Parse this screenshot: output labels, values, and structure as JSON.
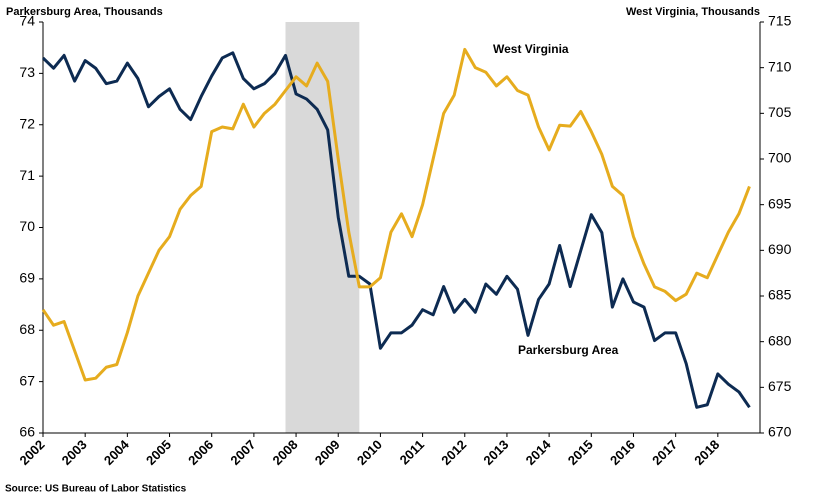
{
  "chart_data": {
    "type": "line",
    "y_label": "Parkersburg Area, Thousands",
    "y2_label": "West Virginia, Thousands",
    "source": "Source: US Bureau of Labor Statistics",
    "annotations": [
      "West Virginia",
      "Parkersburg Area"
    ],
    "shade": [
      2007.75,
      2009.5
    ],
    "x": [
      2002,
      2002.25,
      2002.5,
      2002.75,
      2003,
      2003.25,
      2003.5,
      2003.75,
      2004,
      2004.25,
      2004.5,
      2004.75,
      2005,
      2005.25,
      2005.5,
      2005.75,
      2006,
      2006.25,
      2006.5,
      2006.75,
      2007,
      2007.25,
      2007.5,
      2007.75,
      2008,
      2008.25,
      2008.5,
      2008.75,
      2009,
      2009.25,
      2009.5,
      2009.75,
      2010,
      2010.25,
      2010.5,
      2010.75,
      2011,
      2011.25,
      2011.5,
      2011.75,
      2012,
      2012.25,
      2012.5,
      2012.75,
      2013,
      2013.25,
      2013.5,
      2013.75,
      2014,
      2014.25,
      2014.5,
      2014.75,
      2015,
      2015.25,
      2015.5,
      2015.75,
      2016,
      2016.25,
      2016.5,
      2016.75,
      2017,
      2017.25,
      2017.5,
      2017.75,
      2018,
      2018.25,
      2018.5,
      2018.75
    ],
    "xlim": [
      2002,
      2019
    ],
    "xticks": [
      2002,
      2003,
      2004,
      2005,
      2006,
      2007,
      2008,
      2009,
      2010,
      2011,
      2012,
      2013,
      2014,
      2015,
      2016,
      2017,
      2018
    ],
    "ylim": [
      66,
      74
    ],
    "yticks": [
      66,
      67,
      68,
      69,
      70,
      71,
      72,
      73,
      74
    ],
    "y2lim": [
      670,
      715
    ],
    "y2ticks": [
      670,
      675,
      680,
      685,
      690,
      695,
      700,
      705,
      710,
      715
    ],
    "series": [
      {
        "name": "Parkersburg Area",
        "color": "#0d2b52",
        "values": [
          73.3,
          73.1,
          73.35,
          72.85,
          73.25,
          73.1,
          72.8,
          72.85,
          73.2,
          72.9,
          72.35,
          72.55,
          72.7,
          72.3,
          72.1,
          72.55,
          72.95,
          73.3,
          73.4,
          72.9,
          72.7,
          72.8,
          73.0,
          73.35,
          72.6,
          72.5,
          72.3,
          71.9,
          70.2,
          69.05,
          69.05,
          68.9,
          67.65,
          67.95,
          67.95,
          68.1,
          68.4,
          68.3,
          68.85,
          68.35,
          68.6,
          68.35,
          68.9,
          68.7,
          69.05,
          68.8,
          67.9,
          68.6,
          68.9,
          69.65,
          68.85,
          69.55,
          70.25,
          69.9,
          68.45,
          69.0,
          68.55,
          68.45,
          67.8,
          67.95,
          67.95,
          67.35,
          66.5,
          66.55,
          67.15,
          66.95,
          66.8,
          66.5
        ]
      },
      {
        "name": "West Virginia",
        "color": "#e6ac1e",
        "axis": "y2",
        "values": [
          683.5,
          681.8,
          682.2,
          679,
          675.8,
          676,
          677.2,
          677.5,
          681,
          685,
          687.5,
          690,
          691.5,
          694.5,
          696,
          697,
          703,
          703.5,
          703.3,
          706,
          703.5,
          705,
          706,
          707.5,
          709,
          708,
          710.5,
          708.5,
          700,
          692,
          686,
          686,
          687,
          692,
          694,
          691.5,
          695,
          700,
          705,
          707,
          712,
          710,
          709.5,
          708,
          709,
          707.5,
          707,
          703.5,
          701,
          703.7,
          703.6,
          705.2,
          703,
          700.5,
          697,
          696,
          691.5,
          688.5,
          686,
          685.5,
          684.5,
          685.2,
          687.5,
          687,
          689.5,
          692,
          694,
          697
        ]
      }
    ]
  }
}
